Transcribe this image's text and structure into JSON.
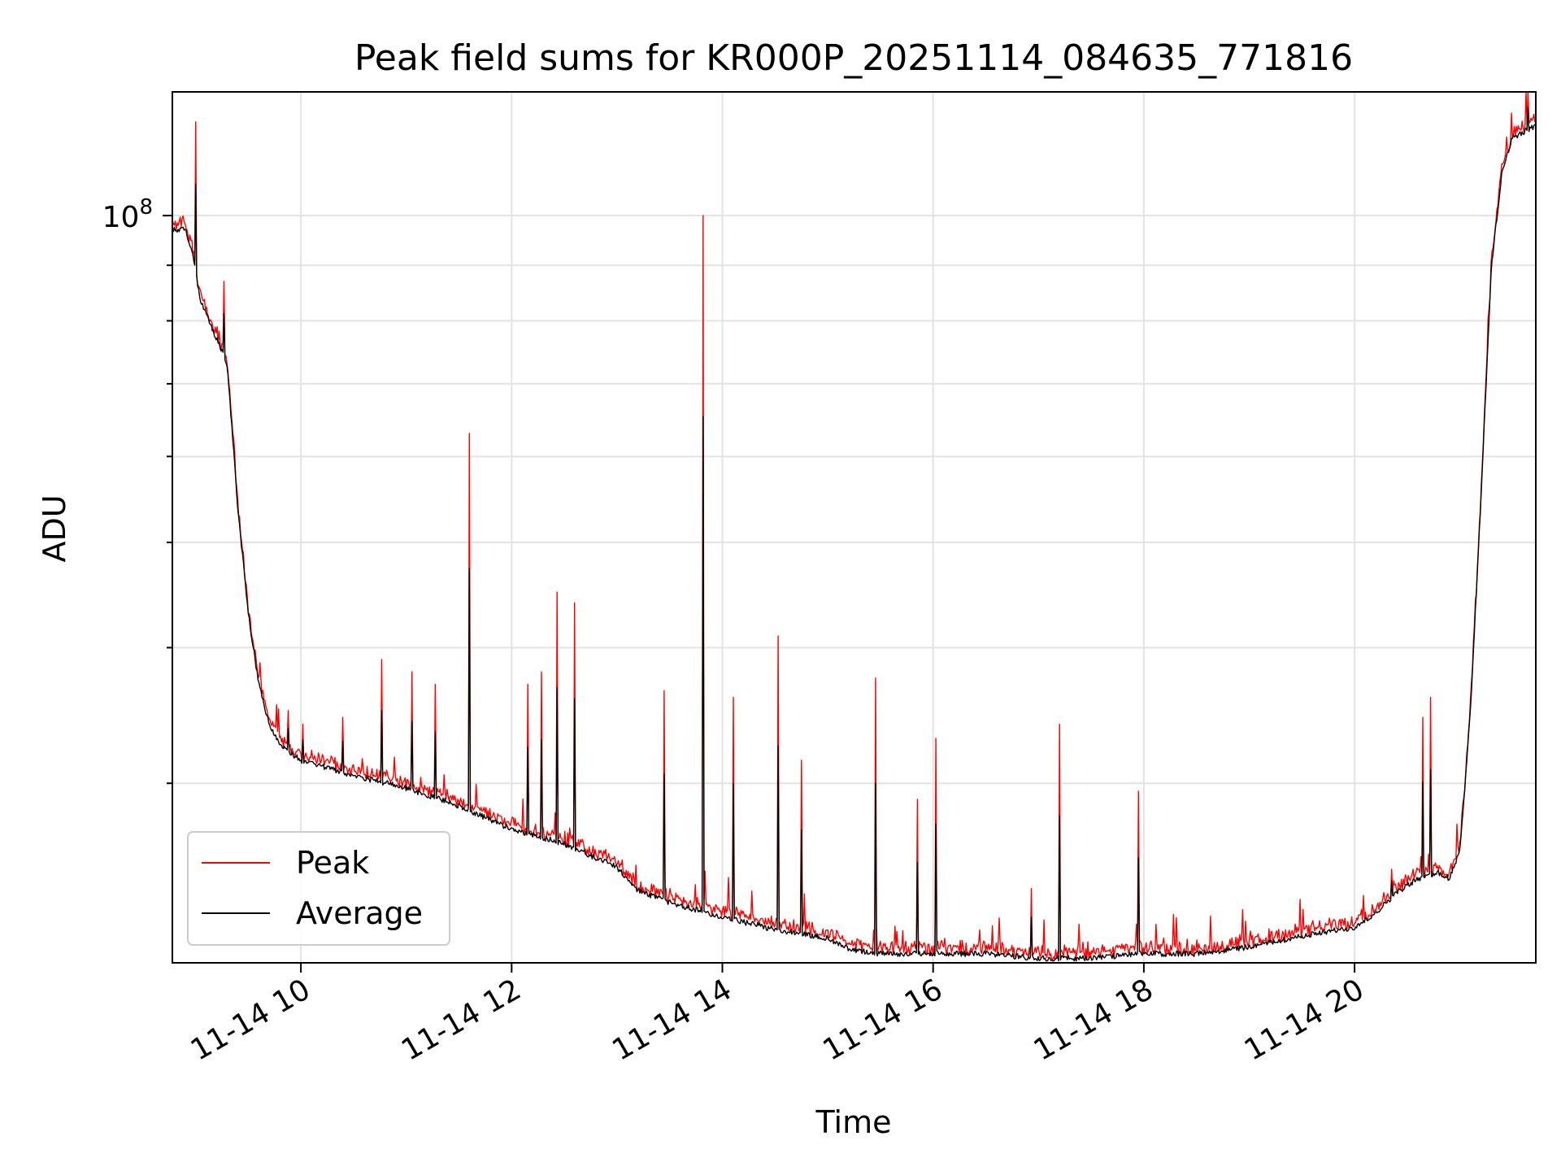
{
  "chart_data": {
    "type": "line",
    "title": "Peak field sums for KR000P_20251114_084635_771816",
    "xlabel": "Time",
    "ylabel": "ADU",
    "x_unit": "hours (2025-11-14)",
    "xlim": [
      8.78,
      21.72
    ],
    "y_scale": "log",
    "ylim": [
      20500000,
      130000000
    ],
    "y_gridlines": [
      20000000,
      30000000,
      40000000,
      50000000,
      60000000,
      70000000,
      80000000,
      90000000,
      100000000
    ],
    "y_ticks": [
      {
        "value": 100000000,
        "base": "10",
        "exponent": "8"
      }
    ],
    "x_ticks": [
      {
        "value": 10,
        "label": "11-14 10"
      },
      {
        "value": 12,
        "label": "11-14 12"
      },
      {
        "value": 14,
        "label": "11-14 14"
      },
      {
        "value": 16,
        "label": "11-14 16"
      },
      {
        "value": 18,
        "label": "11-14 18"
      },
      {
        "value": 20,
        "label": "11-14 20"
      }
    ],
    "grid": true,
    "legend_position": "lower-left",
    "series": [
      {
        "name": "Peak",
        "color": "#ff0000"
      },
      {
        "name": "Average",
        "color": "#000000"
      }
    ],
    "baseline": {
      "x": [
        8.78,
        8.9,
        8.95,
        9.0,
        9.04,
        9.1,
        9.2,
        9.3,
        9.4,
        9.5,
        9.6,
        9.7,
        9.8,
        10.0,
        10.5,
        11.0,
        11.5,
        12.0,
        12.5,
        13.0,
        13.2,
        13.5,
        14.0,
        14.5,
        15.0,
        15.2,
        15.5,
        16.0,
        16.5,
        17.0,
        17.5,
        18.0,
        18.5,
        19.0,
        19.5,
        20.0,
        20.2,
        20.4,
        20.6,
        20.8,
        20.9,
        21.0,
        21.1,
        21.2,
        21.3,
        21.4,
        21.5,
        21.72
      ],
      "y": [
        97000000,
        97000000,
        94000000,
        89000000,
        84000000,
        81000000,
        77000000,
        73000000,
        54000000,
        43000000,
        37000000,
        34000000,
        32500000,
        31500000,
        30500000,
        29700000,
        28600000,
        27200000,
        26400000,
        25100000,
        23900000,
        23300000,
        22600000,
        22000000,
        21600000,
        21100000,
        20900000,
        20900000,
        20900000,
        20700000,
        20700000,
        20900000,
        20900000,
        21200000,
        21700000,
        22100000,
        22800000,
        23800000,
        24500000,
        24800000,
        24500000,
        26000000,
        35000000,
        55000000,
        90000000,
        110000000,
        118000000,
        121000000
      ]
    },
    "peak_spikes": [
      {
        "x": 9.0,
        "value": 122000000
      },
      {
        "x": 9.27,
        "value": 87000000
      },
      {
        "x": 9.88,
        "value": 35000000
      },
      {
        "x": 10.02,
        "value": 34000000
      },
      {
        "x": 10.4,
        "value": 34500000
      },
      {
        "x": 10.77,
        "value": 39000000
      },
      {
        "x": 11.05,
        "value": 38000000
      },
      {
        "x": 11.28,
        "value": 37000000
      },
      {
        "x": 11.6,
        "value": 63000000
      },
      {
        "x": 12.15,
        "value": 37000000
      },
      {
        "x": 12.28,
        "value": 38000000
      },
      {
        "x": 12.43,
        "value": 45000000
      },
      {
        "x": 12.6,
        "value": 44000000
      },
      {
        "x": 13.45,
        "value": 36500000
      },
      {
        "x": 13.82,
        "value": 100000000
      },
      {
        "x": 14.1,
        "value": 36000000
      },
      {
        "x": 14.53,
        "value": 41000000
      },
      {
        "x": 14.75,
        "value": 31500000
      },
      {
        "x": 15.45,
        "value": 37500000
      },
      {
        "x": 15.85,
        "value": 29000000
      },
      {
        "x": 16.03,
        "value": 33000000
      },
      {
        "x": 16.93,
        "value": 24000000
      },
      {
        "x": 17.2,
        "value": 34000000
      },
      {
        "x": 17.95,
        "value": 29500000
      },
      {
        "x": 20.35,
        "value": 25000000
      },
      {
        "x": 20.65,
        "value": 34500000
      },
      {
        "x": 20.72,
        "value": 36000000
      },
      {
        "x": 21.65,
        "value": 130000000
      }
    ],
    "legend": [
      "Peak",
      "Average"
    ]
  }
}
